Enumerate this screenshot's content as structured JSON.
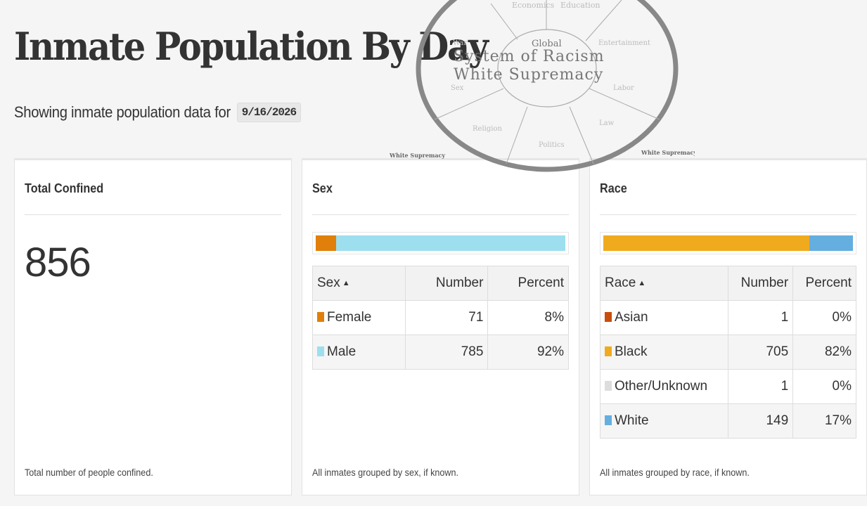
{
  "header": {
    "title": "Inmate Population By Day",
    "subtitle": "Showing inmate population data for",
    "date": "9/16/2026"
  },
  "total_panel": {
    "title": "Total Confined",
    "value": "856",
    "footnote": "Total number of people confined."
  },
  "sex_panel": {
    "title": "Sex",
    "columns": [
      "Sex",
      "Number",
      "Percent"
    ],
    "rows": [
      {
        "label": "Female",
        "number": "71",
        "percent": "8%",
        "color": "#e07f0a"
      },
      {
        "label": "Male",
        "number": "785",
        "percent": "92%",
        "color": "#9ddfee"
      }
    ],
    "footnote": "All inmates grouped by sex, if known."
  },
  "race_panel": {
    "title": "Race",
    "columns": [
      "Race",
      "Number",
      "Percent"
    ],
    "rows": [
      {
        "label": "Asian",
        "number": "1",
        "percent": "0%",
        "color": "#c74e0d"
      },
      {
        "label": "Black",
        "number": "705",
        "percent": "82%",
        "color": "#f0aa1e"
      },
      {
        "label": "Other/Unknown",
        "number": "1",
        "percent": "0%",
        "color": "#dddddd"
      },
      {
        "label": "White",
        "number": "149",
        "percent": "17%",
        "color": "#64aee0"
      }
    ],
    "footnote": "All inmates grouped by race, if known."
  },
  "overlay_diagram": {
    "center_small": "Global",
    "center_line1": "System of Racism",
    "center_line2": "White Supremacy",
    "spokes": [
      "Economics",
      "Education",
      "War",
      "Entertainment",
      "Sex",
      "Labor",
      "Religion",
      "Law",
      "Politics"
    ],
    "caption_left": "White Supremacy",
    "caption_right": "White Supremacy"
  },
  "colors": {
    "female": "#e07f0a",
    "male": "#9ddfee",
    "asian": "#c74e0d",
    "black": "#f0aa1e",
    "other": "#dddddd",
    "white": "#64aee0"
  }
}
